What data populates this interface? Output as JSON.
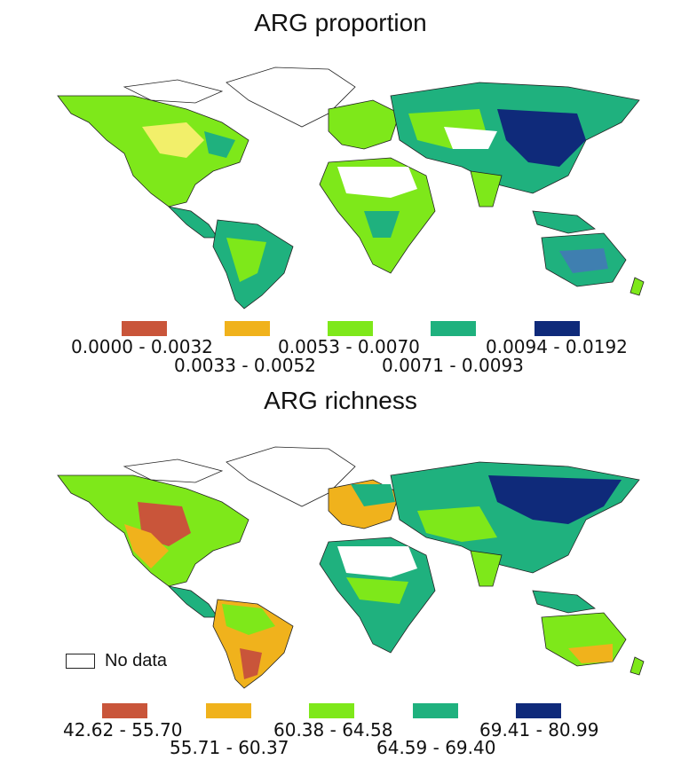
{
  "maps": [
    {
      "title": "ARG proportion",
      "legend": [
        {
          "label": "0.0000 - 0.0032",
          "color": "#c9553a"
        },
        {
          "label": "0.0033 - 0.0052",
          "color": "#f0b21c"
        },
        {
          "label": "0.0053 - 0.0070",
          "color": "#7ee81a"
        },
        {
          "label": "0.0071 - 0.0093",
          "color": "#1fb17e"
        },
        {
          "label": "0.0094 - 0.0192",
          "color": "#0f2a7a"
        }
      ]
    },
    {
      "title": "ARG richness",
      "nodata_label": "No data",
      "legend": [
        {
          "label": "42.62 - 55.70",
          "color": "#c9553a"
        },
        {
          "label": "55.71 - 60.37",
          "color": "#f0b21c"
        },
        {
          "label": "60.38 - 64.58",
          "color": "#7ee81a"
        },
        {
          "label": "64.59 - 69.40",
          "color": "#1fb17e"
        },
        {
          "label": "69.41 - 80.99",
          "color": "#0f2a7a"
        }
      ]
    }
  ]
}
